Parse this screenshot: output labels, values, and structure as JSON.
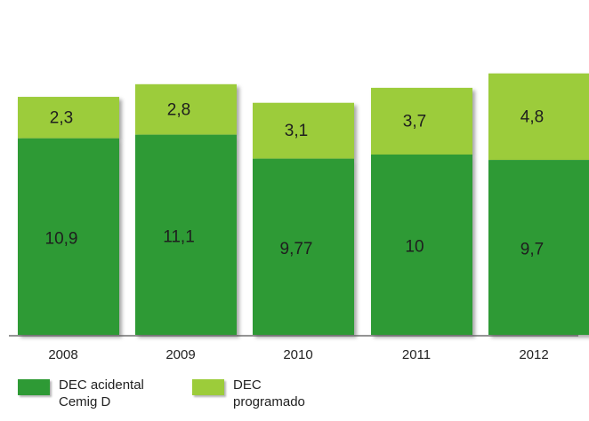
{
  "chart_data": {
    "type": "bar",
    "stacked": true,
    "categories": [
      "2008",
      "2009",
      "2010",
      "2011",
      "2012"
    ],
    "series": [
      {
        "name": "DEC acidental Cemig D",
        "values": [
          10.9,
          11.1,
          9.77,
          10,
          9.7
        ],
        "labels": [
          "10,9",
          "11,1",
          "9,77",
          "10",
          "9,7"
        ],
        "color": "#2e9a35"
      },
      {
        "name": "DEC programado",
        "values": [
          2.3,
          2.8,
          3.1,
          3.7,
          4.8
        ],
        "labels": [
          "2,3",
          "2,8",
          "3,1",
          "3,7",
          "4,8"
        ],
        "color": "#9ccc3a"
      }
    ],
    "legend_position": "bottom-left"
  },
  "colors": {
    "accidental": "#2e9a35",
    "programmed": "#9ccc3a",
    "axis": "#555555"
  }
}
